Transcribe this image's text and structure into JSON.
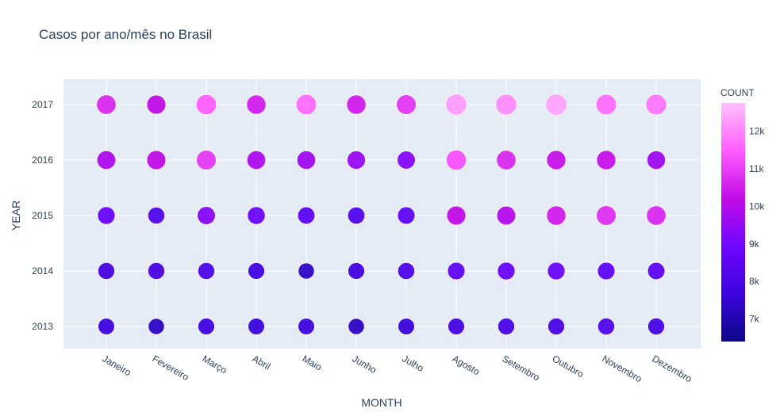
{
  "chart_data": {
    "type": "scatter",
    "title": "Casos por ano/mês no Brasil",
    "xlabel": "MONTH",
    "ylabel": "YEAR",
    "categories": [
      "Janeiro",
      "Fevereiro",
      "Março",
      "Abril",
      "Maio",
      "Junho",
      "Julho",
      "Agosto",
      "Setembro",
      "Outubro",
      "Novembro",
      "Dezembro"
    ],
    "years": [
      2013,
      2014,
      2015,
      2016,
      2017
    ],
    "counts": {
      "2013": [
        7700,
        7300,
        7750,
        7650,
        7700,
        7300,
        7650,
        7900,
        8000,
        8000,
        8150,
        7950
      ],
      "2014": [
        7950,
        7950,
        8050,
        7800,
        7300,
        7800,
        8100,
        8600,
        8750,
        8800,
        8600,
        8500
      ],
      "2015": [
        8800,
        8150,
        9300,
        8900,
        8450,
        8250,
        8600,
        10200,
        10000,
        10500,
        10800,
        10700
      ],
      "2016": [
        9900,
        10200,
        10900,
        9900,
        9700,
        9600,
        9300,
        11300,
        10700,
        10300,
        10300,
        9700
      ],
      "2017": [
        10700,
        10200,
        11500,
        10500,
        11700,
        10500,
        10900,
        12300,
        12100,
        12400,
        11700,
        11800
      ]
    },
    "colorbar": {
      "title": "COUNT",
      "min": 6400,
      "max": 12750,
      "ticks": [
        7000,
        8000,
        9000,
        10000,
        11000,
        12000
      ],
      "tick_labels": [
        "7k",
        "8k",
        "9k",
        "10k",
        "11k",
        "12k"
      ],
      "colorscale": [
        "#0d0887",
        "#3d05dd",
        "#6e07ff",
        "#c30ce8",
        "#ff5cff",
        "#ffc1ff"
      ]
    },
    "grid": true,
    "legend": "colorbar right"
  }
}
